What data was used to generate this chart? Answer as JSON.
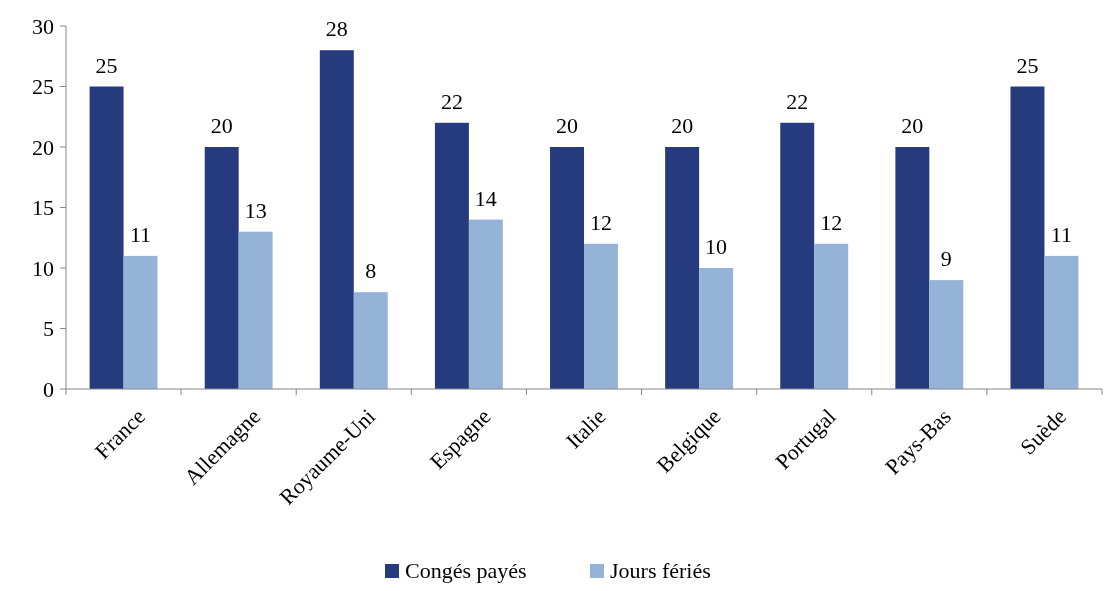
{
  "chart_data": {
    "type": "bar",
    "categories": [
      "France",
      "Allemagne",
      "Royaume-Uni",
      "Espagne",
      "Italie",
      "Belgique",
      "Portugal",
      "Pays-Bas",
      "Suède"
    ],
    "series": [
      {
        "name": "Congés payés",
        "color": "#253b7e",
        "values": [
          25,
          20,
          28,
          22,
          20,
          20,
          22,
          20,
          25
        ]
      },
      {
        "name": "Jours fériés",
        "color": "#95b3d7",
        "values": [
          11,
          13,
          8,
          14,
          12,
          10,
          12,
          9,
          11
        ]
      }
    ],
    "ylim": [
      0,
      30
    ],
    "yticks": [
      0,
      5,
      10,
      15,
      20,
      25,
      30
    ],
    "grid": false,
    "legend": "bottom",
    "data_labels": true
  }
}
